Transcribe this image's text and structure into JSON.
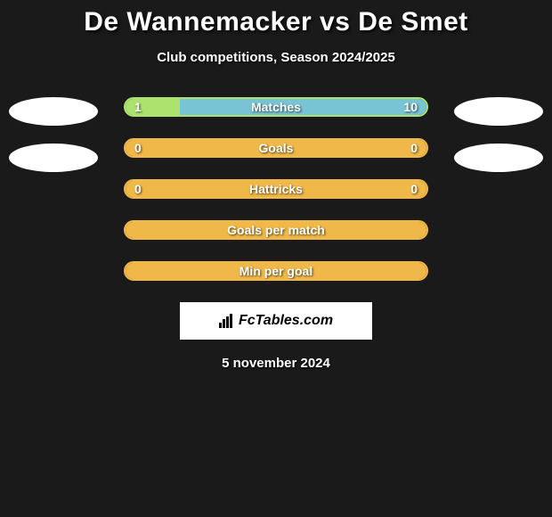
{
  "title": "De Wannemacker vs De Smet",
  "subtitle": "Club competitions, Season 2024/2025",
  "date": "5 november 2024",
  "brand": "FcTables.com",
  "colors": {
    "background": "#1a1a1a",
    "avatar_bg": "#ffffff",
    "text": "#ffffff",
    "logo_bg": "#ffffff",
    "logo_text": "#000000"
  },
  "bars": [
    {
      "label": "Matches",
      "left_val": "1",
      "right_val": "10",
      "left_color": "#aee26e",
      "right_color": "#78c4d4",
      "border_color": "#aee26e",
      "left_pct": 18,
      "right_pct": 82,
      "show_vals": true
    },
    {
      "label": "Goals",
      "left_val": "0",
      "right_val": "0",
      "left_color": "#f0b848",
      "right_color": "#f0b848",
      "border_color": "#f0b848",
      "left_pct": 50,
      "right_pct": 50,
      "show_vals": true
    },
    {
      "label": "Hattricks",
      "left_val": "0",
      "right_val": "0",
      "left_color": "#f0b848",
      "right_color": "#f0b848",
      "border_color": "#f0b848",
      "left_pct": 50,
      "right_pct": 50,
      "show_vals": true
    },
    {
      "label": "Goals per match",
      "left_val": "",
      "right_val": "",
      "left_color": "#f0b848",
      "right_color": "#f0b848",
      "border_color": "#f0b848",
      "left_pct": 50,
      "right_pct": 50,
      "show_vals": false
    },
    {
      "label": "Min per goal",
      "left_val": "",
      "right_val": "",
      "left_color": "#f0b848",
      "right_color": "#f0b848",
      "border_color": "#f0b848",
      "left_pct": 50,
      "right_pct": 50,
      "show_vals": false
    }
  ]
}
